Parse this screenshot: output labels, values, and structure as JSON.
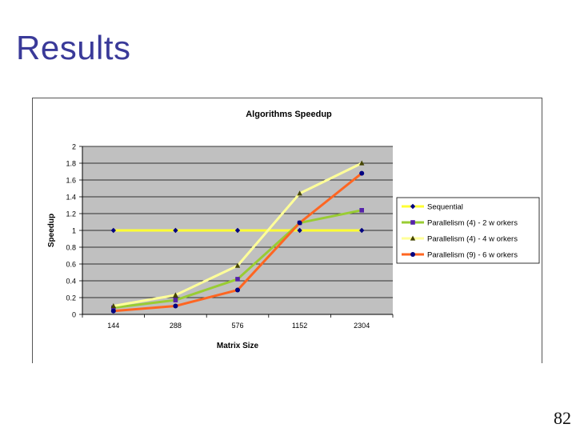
{
  "slide": {
    "title": "Results",
    "page_number": "82"
  },
  "colors": {
    "title": "#3a3a99",
    "plot_background": "#c0c0c0",
    "grid": "#000000"
  },
  "chart_data": {
    "type": "line",
    "title": "Algorithms Speedup",
    "xlabel": "Matrix Size",
    "ylabel": "Speedup",
    "categories": [
      "144",
      "288",
      "576",
      "1152",
      "2304"
    ],
    "ylim": [
      0,
      2
    ],
    "yticks": [
      "0",
      "0.2",
      "0.4",
      "0.6",
      "0.8",
      "1",
      "1.2",
      "1.4",
      "1.6",
      "1.8",
      "2"
    ],
    "grid": true,
    "legend_position": "right",
    "series": [
      {
        "name": "Sequential",
        "values": [
          1,
          1,
          1,
          1,
          1
        ],
        "color": "#ffff33",
        "marker": "diamond",
        "marker_color": "#000080"
      },
      {
        "name": "Parallelism (4) - 2 w orkers",
        "values": [
          0.08,
          0.17,
          0.42,
          1.09,
          1.24
        ],
        "color": "#99cc33",
        "marker": "square",
        "marker_color": "#5522aa"
      },
      {
        "name": "Parallelism (4) - 4 w orkers",
        "values": [
          0.1,
          0.23,
          0.58,
          1.44,
          1.8
        ],
        "color": "#ffff99",
        "marker": "triangle",
        "marker_color": "#444400"
      },
      {
        "name": "Parallelism (9) - 6 w orkers",
        "values": [
          0.04,
          0.1,
          0.29,
          1.09,
          1.68
        ],
        "color": "#ff6622",
        "marker": "circle",
        "marker_color": "#000080"
      }
    ]
  }
}
